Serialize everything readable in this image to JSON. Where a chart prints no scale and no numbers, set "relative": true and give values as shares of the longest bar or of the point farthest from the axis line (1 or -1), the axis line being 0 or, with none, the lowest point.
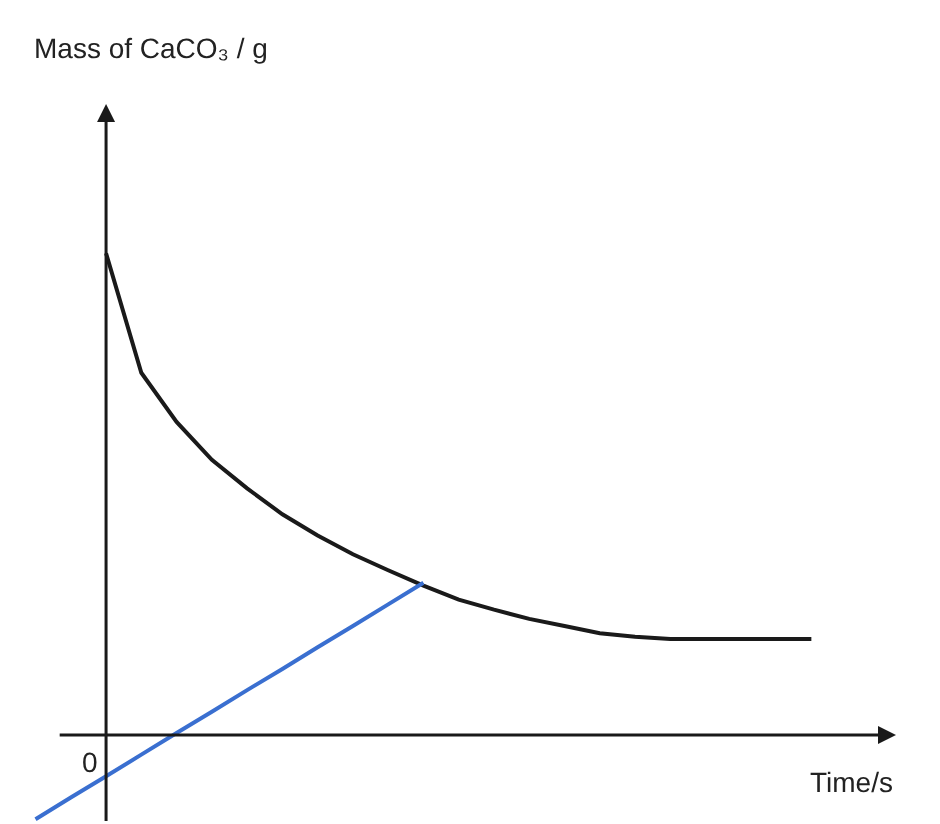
{
  "chart_data": {
    "type": "line",
    "relative": true,
    "xlabel": "Time/s",
    "annotations": [
      "0",
      "Mass of CaCO₃ / g"
    ],
    "marker": "none",
    "line_style": "solid",
    "grid": false,
    "categories": [
      null,
      null,
      null,
      null,
      null,
      null,
      null,
      null,
      null,
      null,
      null,
      null,
      null,
      null,
      null,
      null,
      null,
      null,
      null,
      null,
      null,
      null,
      null
    ],
    "series": [
      {
        "color": "#1a1a1a",
        "values": [
          null,
          null,
          1.0,
          0.752,
          0.65,
          0.571,
          0.512,
          0.458,
          0.414,
          0.375,
          0.342,
          0.31,
          0.281,
          0.26,
          0.241,
          0.226,
          0.211,
          0.204,
          0.199,
          0.199,
          0.199,
          0.199,
          0.199
        ]
      },
      {
        "color": "#3a6fd0",
        "values": [
          -0.175,
          -0.13,
          -0.086,
          -0.041,
          0.004,
          0.048,
          0.093,
          0.137,
          0.182,
          0.226,
          0.271,
          0.316,
          null,
          null,
          null,
          null,
          null,
          null,
          null,
          null,
          null,
          null,
          null
        ]
      }
    ]
  }
}
